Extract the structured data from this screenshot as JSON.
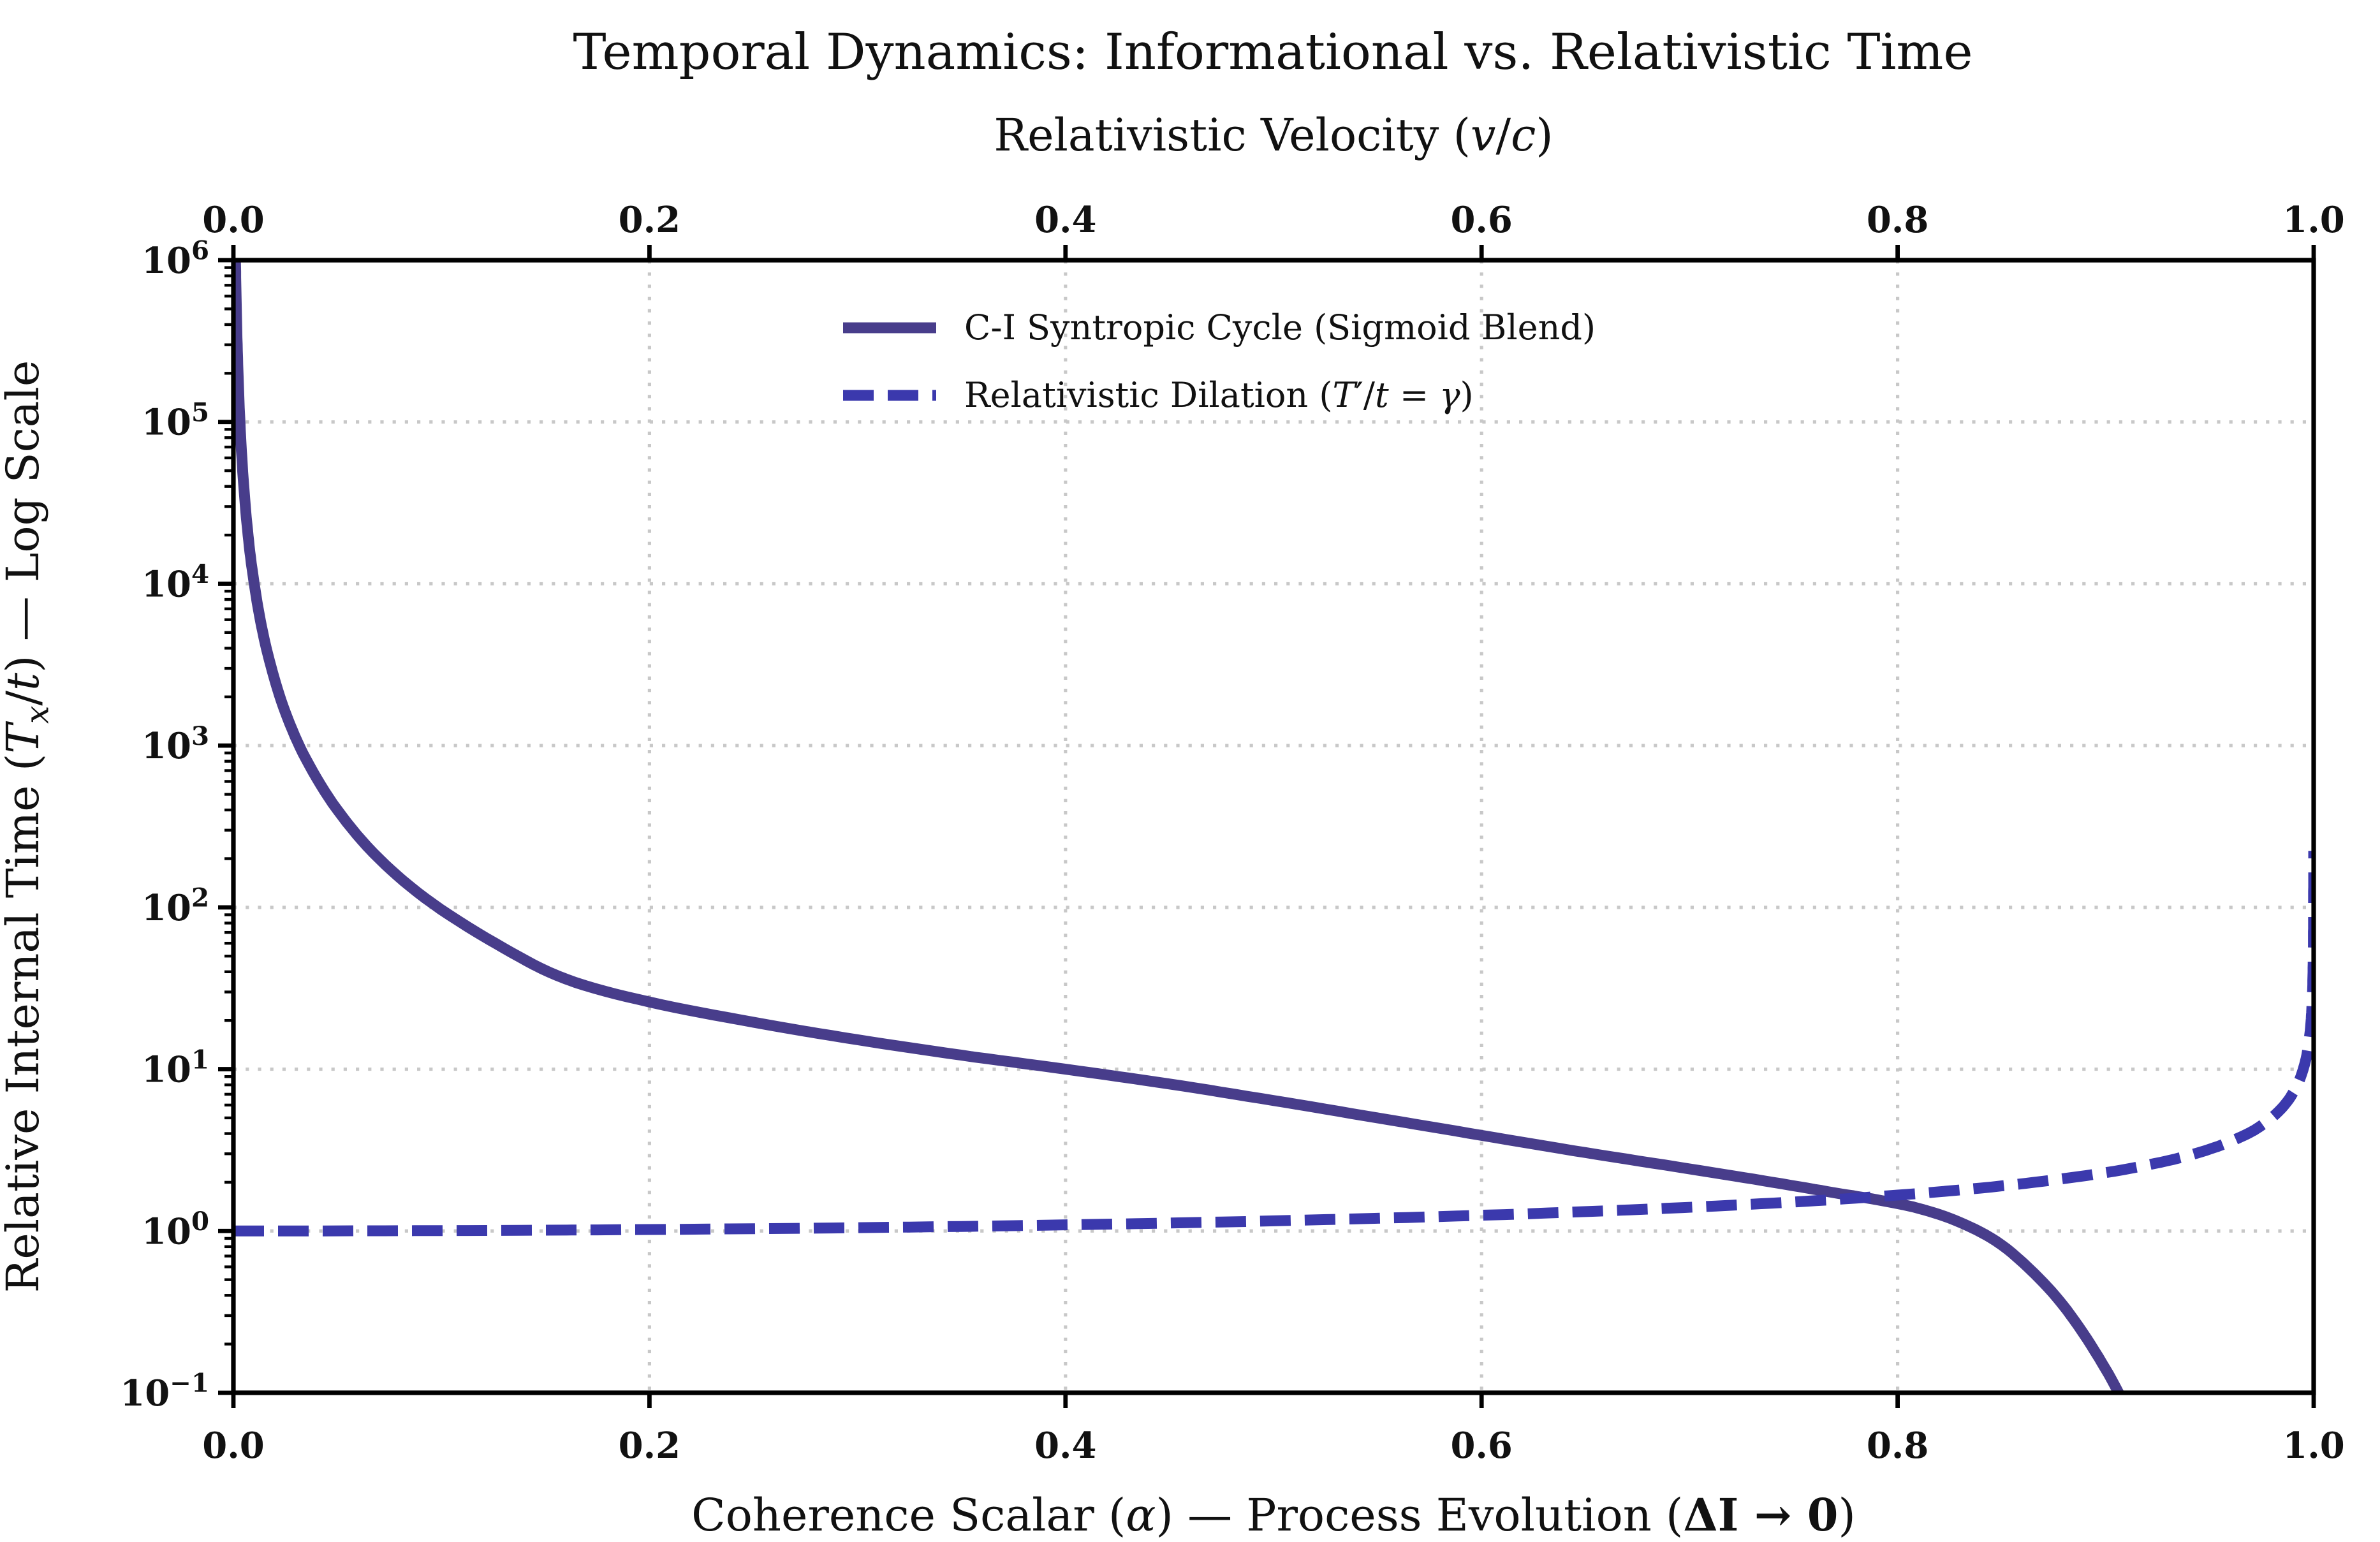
{
  "figure": {
    "background": "#ffffff",
    "axis_color": "#000000",
    "text_color": "#111111"
  },
  "chart_data": {
    "type": "line",
    "title": "Temporal Dynamics: Informational vs. Relativistic Time",
    "top_axis": {
      "label_runs": [
        {
          "t": "Relativistic Velocity ("
        },
        {
          "t": "v",
          "i": true
        },
        {
          "t": "/"
        },
        {
          "t": "c",
          "i": true
        },
        {
          "t": ")"
        }
      ],
      "tick_labels": [
        "0.0",
        "0.2",
        "0.4",
        "0.6",
        "0.8",
        "1.0"
      ],
      "tick_values": [
        0.0,
        0.2,
        0.4,
        0.6,
        0.8,
        1.0
      ]
    },
    "bottom_axis": {
      "label_runs": [
        {
          "t": "Coherence Scalar ("
        },
        {
          "t": "α",
          "i": true
        },
        {
          "t": ") — Process Evolution ("
        },
        {
          "t": "ΔI → 0",
          "b": true
        },
        {
          "t": ")"
        }
      ],
      "tick_labels": [
        "0.0",
        "0.2",
        "0.4",
        "0.6",
        "0.8",
        "1.0"
      ],
      "tick_values": [
        0.0,
        0.2,
        0.4,
        0.6,
        0.8,
        1.0
      ]
    },
    "y_axis": {
      "label_runs": [
        {
          "t": "Relative Internal Time ("
        },
        {
          "t": "T",
          "i": true
        },
        {
          "t": "x",
          "i": true,
          "sub": true
        },
        {
          "t": "/"
        },
        {
          "t": "t",
          "i": true
        },
        {
          "t": ") — Log Scale"
        }
      ],
      "scale": "log",
      "tick_exponents": [
        6,
        5,
        4,
        3,
        2,
        1,
        0,
        -1
      ],
      "minor_ticks": true
    },
    "xlim": [
      0,
      1
    ],
    "ylim_exponents": [
      -1,
      6
    ],
    "grid": {
      "show": true,
      "color": "#c8c8c8",
      "x_values": [
        0.2,
        0.4,
        0.6,
        0.8
      ],
      "y_exponents": [
        5,
        4,
        3,
        2,
        1,
        0
      ]
    },
    "legend": {
      "position": "upper center",
      "frame": false,
      "entries": [
        {
          "series": 0,
          "label_runs": [
            {
              "t": "C-I Syntropic Cycle (Sigmoid Blend)"
            }
          ]
        },
        {
          "series": 1,
          "label_runs": [
            {
              "t": "Relativistic Dilation ("
            },
            {
              "t": "T",
              "i": true
            },
            {
              "t": "′"
            },
            {
              "t": "/"
            },
            {
              "t": "t",
              "i": true
            },
            {
              "t": " = "
            },
            {
              "t": "γ",
              "i": true
            },
            {
              "t": ")"
            }
          ]
        }
      ]
    },
    "series": [
      {
        "name": "C-I Syntropic Cycle (Sigmoid Blend)",
        "style": "solid",
        "color": "#483D8B",
        "points": [
          [
            0.0008,
            1800000
          ],
          [
            0.001,
            1000000
          ],
          [
            0.0014,
            510000
          ],
          [
            0.002,
            250000
          ],
          [
            0.003,
            110000
          ],
          [
            0.0045,
            49000
          ],
          [
            0.0065,
            23500
          ],
          [
            0.009,
            12300
          ],
          [
            0.013,
            5900
          ],
          [
            0.018,
            3100
          ],
          [
            0.025,
            1600
          ],
          [
            0.035,
            820
          ],
          [
            0.05,
            400
          ],
          [
            0.07,
            200
          ],
          [
            0.096,
            105
          ],
          [
            0.13,
            56
          ],
          [
            0.16,
            36
          ],
          [
            0.2,
            26
          ],
          [
            0.25,
            19.5
          ],
          [
            0.3,
            15.2
          ],
          [
            0.35,
            12.2
          ],
          [
            0.4,
            10
          ],
          [
            0.45,
            8.1
          ],
          [
            0.5,
            6.4
          ],
          [
            0.55,
            5.0
          ],
          [
            0.6,
            3.9
          ],
          [
            0.65,
            3.05
          ],
          [
            0.7,
            2.42
          ],
          [
            0.74,
            2.0
          ],
          [
            0.77,
            1.72
          ],
          [
            0.79,
            1.56
          ],
          [
            0.81,
            1.38
          ],
          [
            0.83,
            1.13
          ],
          [
            0.85,
            0.82
          ],
          [
            0.87,
            0.48
          ],
          [
            0.885,
            0.28
          ],
          [
            0.9,
            0.14
          ],
          [
            0.91,
            0.08
          ],
          [
            0.916,
            0.055
          ]
        ]
      },
      {
        "name": "Relativistic Dilation (T′/t = γ)",
        "style": "dashed",
        "color": "#3B39AD",
        "points": [
          [
            0.0,
            1.0
          ],
          [
            0.1,
            1.005
          ],
          [
            0.2,
            1.021
          ],
          [
            0.3,
            1.048
          ],
          [
            0.4,
            1.091
          ],
          [
            0.5,
            1.155
          ],
          [
            0.6,
            1.25
          ],
          [
            0.68,
            1.366
          ],
          [
            0.74,
            1.487
          ],
          [
            0.78,
            1.597
          ],
          [
            0.82,
            1.747
          ],
          [
            0.86,
            1.96
          ],
          [
            0.9,
            2.294
          ],
          [
            0.93,
            2.721
          ],
          [
            0.95,
            3.203
          ],
          [
            0.965,
            3.81
          ],
          [
            0.975,
            4.5
          ],
          [
            0.985,
            5.8
          ],
          [
            0.992,
            7.92
          ],
          [
            0.996,
            11.19
          ],
          [
            0.998,
            15.82
          ],
          [
            0.999,
            22.37
          ],
          [
            0.9995,
            31.62
          ],
          [
            0.9998,
            50.0
          ],
          [
            0.9999,
            70.71
          ],
          [
            0.99995,
            100.0
          ],
          [
            0.99998,
            158.1
          ],
          [
            0.99999,
            223.6
          ]
        ]
      }
    ]
  }
}
